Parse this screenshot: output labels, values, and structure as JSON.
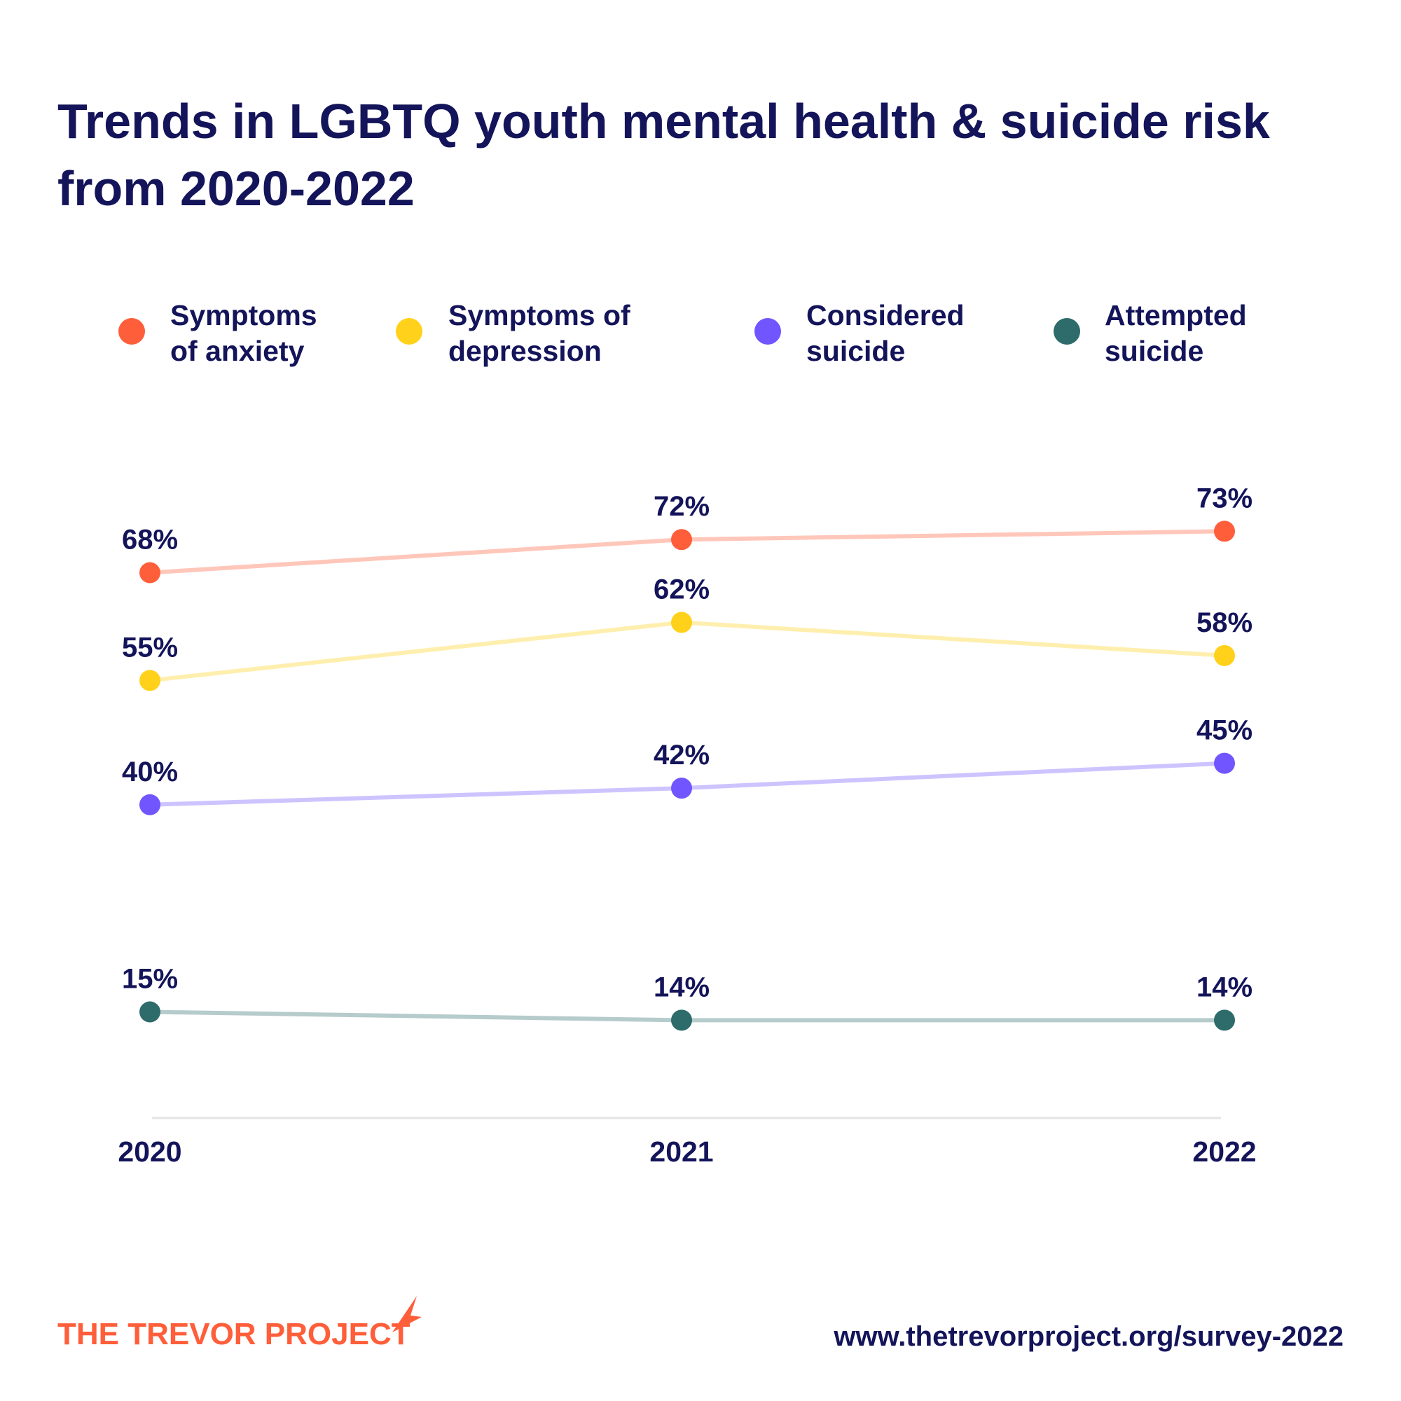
{
  "chart_data": {
    "type": "line",
    "title": "Trends in LGBTQ youth mental health & suicide risk from 2020-2022",
    "categories": [
      "2020",
      "2021",
      "2022"
    ],
    "series": [
      {
        "name": "Symptoms of anxiety",
        "color": "#ff5e3a",
        "values": [
          68,
          72,
          73
        ],
        "value_labels": [
          "68%",
          "72%",
          "73%"
        ]
      },
      {
        "name": "Symptoms of depression",
        "color": "#ffd11a",
        "values": [
          55,
          62,
          58
        ],
        "value_labels": [
          "55%",
          "62%",
          "58%"
        ]
      },
      {
        "name": "Considered suicide",
        "color": "#7155ff",
        "values": [
          40,
          42,
          45
        ],
        "value_labels": [
          "40%",
          "42%",
          "45%"
        ]
      },
      {
        "name": "Attempted suicide",
        "color": "#2e6b6b",
        "values": [
          15,
          14,
          14
        ],
        "value_labels": [
          "15%",
          "14%",
          "14%"
        ]
      }
    ],
    "logo_text": "THE TREVOR PROJECT",
    "source": "www.thetrevorproject.org/survey-2022"
  }
}
